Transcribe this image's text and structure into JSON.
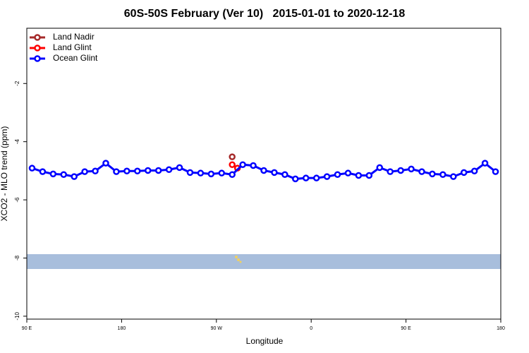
{
  "chart_data": {
    "type": "line",
    "title": "60S-50S February (Ver 10)   2015-01-01 to 2020-12-18",
    "x_label": "Longitude",
    "y_label": "XCO2 - MLO trend (ppm)",
    "xlim": [
      90,
      540
    ],
    "xticks": [
      {
        "value": 90,
        "label": "90 E"
      },
      180,
      {
        "value": 270,
        "label": "90 W"
      },
      {
        "value": 360,
        "label": "0"
      },
      {
        "value": 450,
        "label": "90 E"
      },
      {
        "value": 540,
        "label": "180"
      }
    ],
    "ylim": [
      -10.1,
      -0.1
    ],
    "yticks": [
      -2,
      -4,
      -6,
      -8,
      -10
    ],
    "legend": "top-left",
    "series": [
      {
        "name": "Land Nadir",
        "color": "#a52a2a",
        "x": [
          285
        ],
        "values": [
          -4.52
        ]
      },
      {
        "name": "Land Glint",
        "color": "#ff0000",
        "x": [
          285,
          290
        ],
        "values": [
          -4.79,
          -4.91
        ]
      },
      {
        "name": "Ocean Glint",
        "color": "#0000ff",
        "x": [
          95,
          105,
          115,
          125,
          135,
          145,
          155,
          165,
          175,
          185,
          195,
          205,
          215,
          225,
          235,
          245,
          255,
          265,
          275,
          285,
          295,
          305,
          315,
          325,
          335,
          345,
          355,
          365,
          375,
          385,
          395,
          405,
          415,
          425,
          435,
          445,
          455,
          465,
          475,
          485,
          495,
          505,
          515,
          525,
          535
        ],
        "values": [
          -4.91,
          -5.03,
          -5.11,
          -5.13,
          -5.2,
          -5.03,
          -5.01,
          -4.74,
          -5.03,
          -5.01,
          -5.01,
          -4.99,
          -4.99,
          -4.96,
          -4.89,
          -5.06,
          -5.08,
          -5.11,
          -5.08,
          -5.13,
          -4.79,
          -4.82,
          -4.99,
          -5.06,
          -5.13,
          -5.28,
          -5.25,
          -5.25,
          -5.2,
          -5.13,
          -5.08,
          -5.16,
          -5.16,
          -4.89,
          -5.03,
          -4.99,
          -4.94,
          -5.03,
          -5.11,
          -5.13,
          -5.2,
          -5.06,
          -5.01,
          -4.74,
          -5.03
        ]
      }
    ]
  }
}
